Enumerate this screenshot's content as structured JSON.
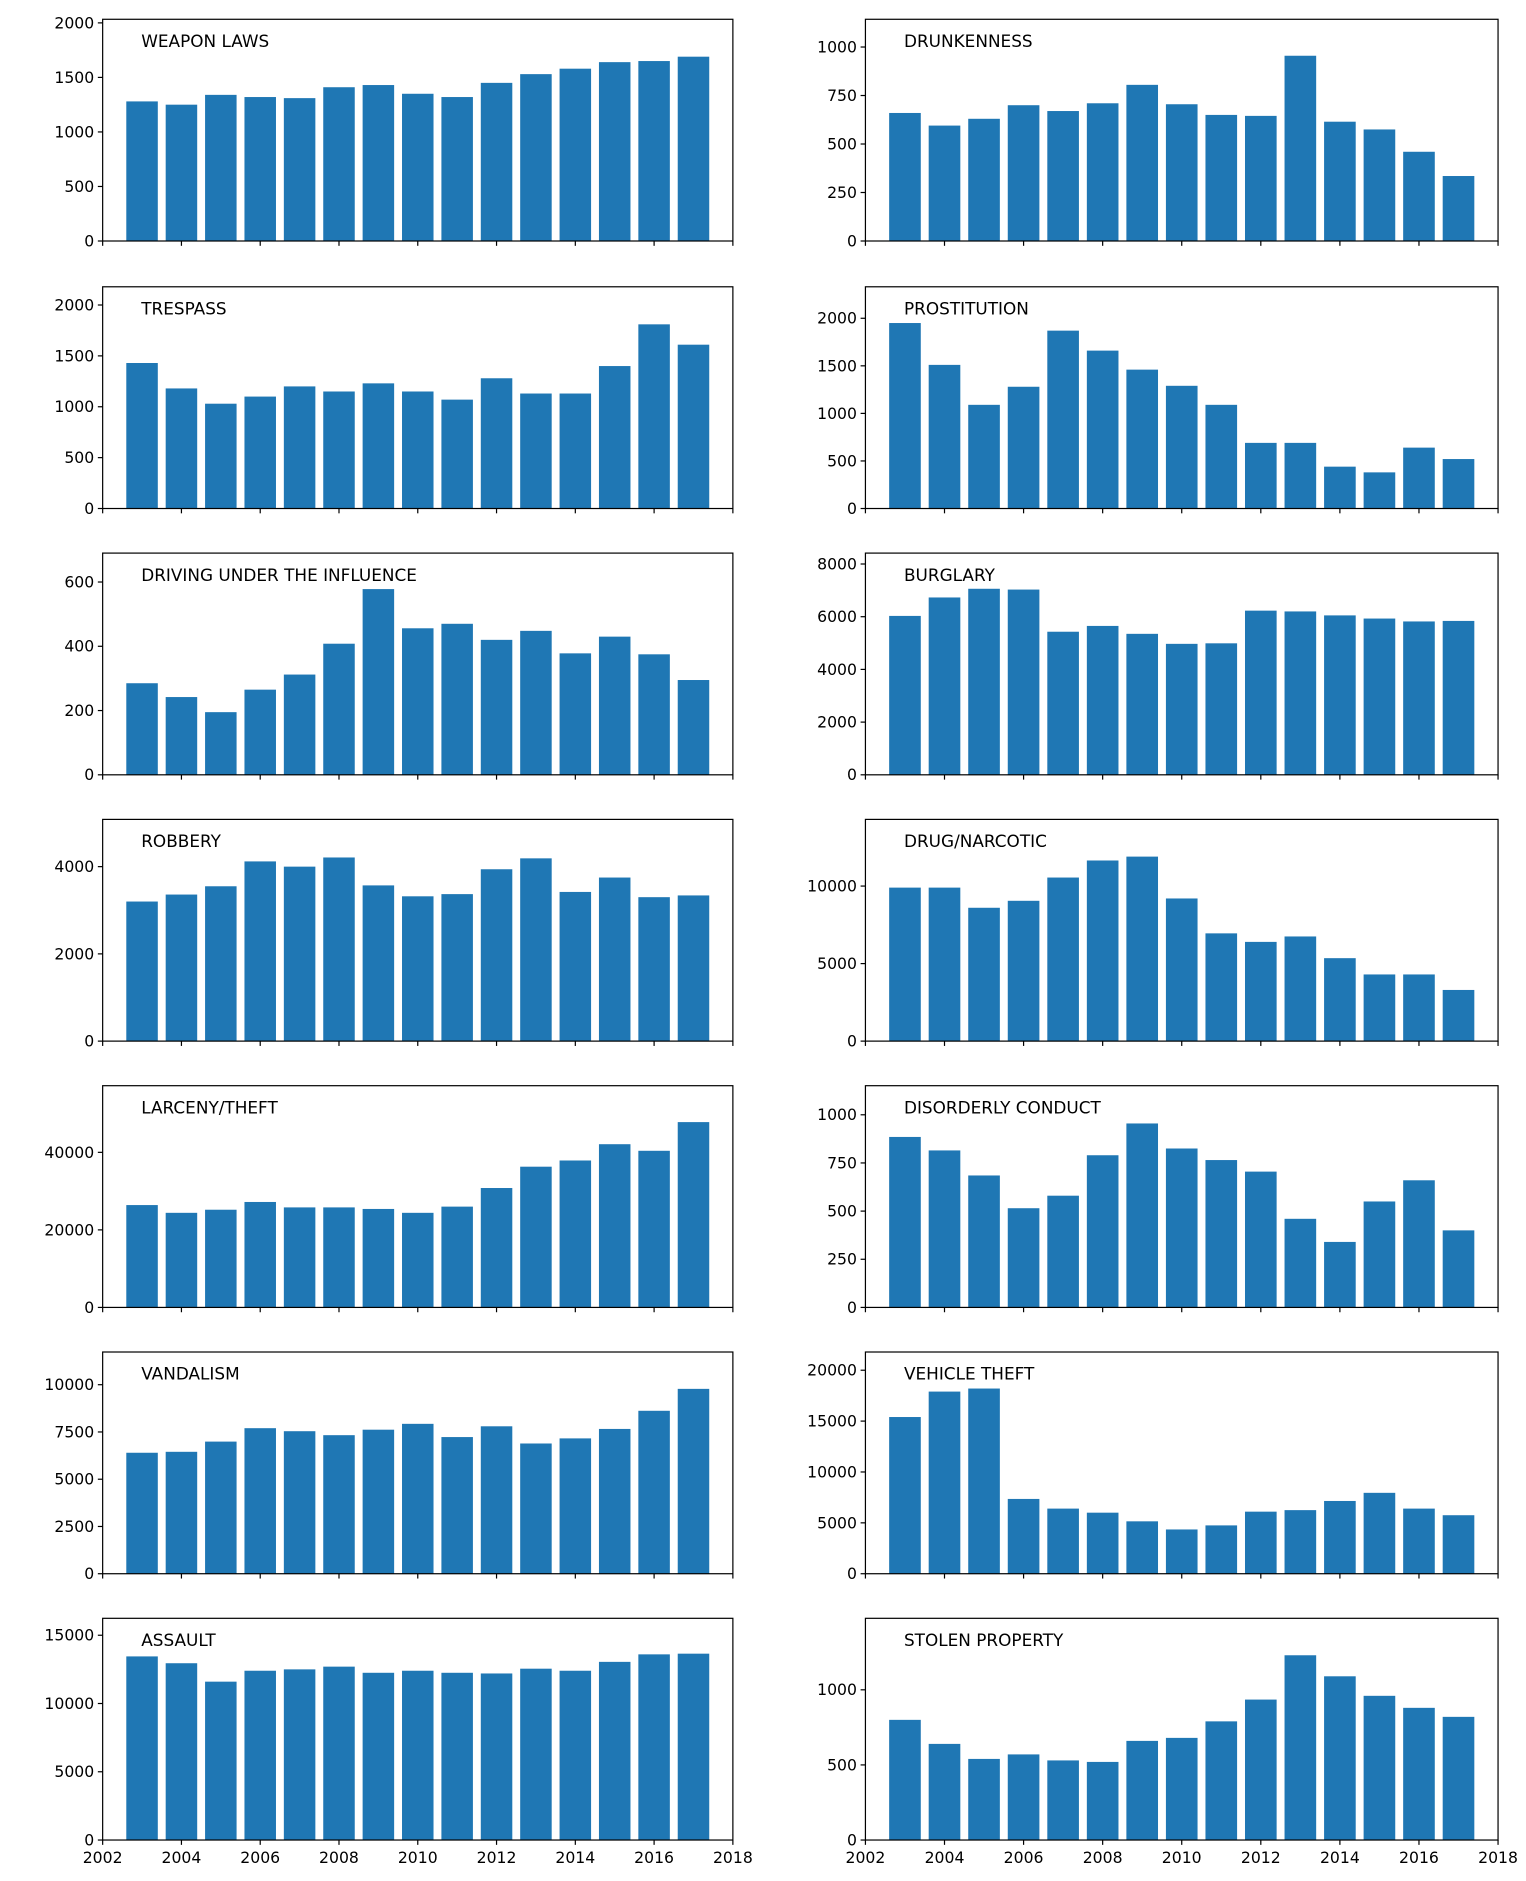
{
  "bar_color": "#1f77b4",
  "chart_data": [
    {
      "type": "bar",
      "title": "WEAPON LAWS",
      "ylim": [
        0,
        2033
      ],
      "yticks": [
        0,
        500,
        1000,
        1500,
        2000
      ],
      "x": [
        2003,
        2004,
        2005,
        2006,
        2007,
        2008,
        2009,
        2010,
        2011,
        2012,
        2013,
        2014,
        2015,
        2016,
        2017
      ],
      "values": [
        1280,
        1250,
        1340,
        1320,
        1310,
        1410,
        1430,
        1350,
        1320,
        1450,
        1530,
        1580,
        1640,
        1650,
        1690
      ]
    },
    {
      "type": "bar",
      "title": "DRUNKENNESS",
      "ylim": [
        0,
        1143
      ],
      "yticks": [
        0,
        250,
        500,
        750,
        1000
      ],
      "x": [
        2003,
        2004,
        2005,
        2006,
        2007,
        2008,
        2009,
        2010,
        2011,
        2012,
        2013,
        2014,
        2015,
        2016,
        2017
      ],
      "values": [
        660,
        595,
        630,
        700,
        670,
        710,
        805,
        705,
        650,
        645,
        955,
        615,
        575,
        460,
        335
      ]
    },
    {
      "type": "bar",
      "title": "TRESPASS",
      "ylim": [
        0,
        2179
      ],
      "yticks": [
        0,
        500,
        1000,
        1500,
        2000
      ],
      "x": [
        2003,
        2004,
        2005,
        2006,
        2007,
        2008,
        2009,
        2010,
        2011,
        2012,
        2013,
        2014,
        2015,
        2016,
        2017
      ],
      "values": [
        1430,
        1180,
        1030,
        1100,
        1200,
        1150,
        1230,
        1150,
        1070,
        1280,
        1130,
        1130,
        1400,
        1810,
        1610
      ]
    },
    {
      "type": "bar",
      "title": "PROSTITUTION",
      "ylim": [
        0,
        2331
      ],
      "yticks": [
        0,
        500,
        1000,
        1500,
        2000
      ],
      "x": [
        2003,
        2004,
        2005,
        2006,
        2007,
        2008,
        2009,
        2010,
        2011,
        2012,
        2013,
        2014,
        2015,
        2016,
        2017
      ],
      "values": [
        1950,
        1510,
        1090,
        1280,
        1870,
        1660,
        1460,
        1290,
        1090,
        690,
        690,
        440,
        380,
        640,
        520
      ]
    },
    {
      "type": "bar",
      "title": "DRIVING UNDER THE INFLUENCE",
      "ylim": [
        0,
        690
      ],
      "yticks": [
        0,
        200,
        400,
        600
      ],
      "x": [
        2003,
        2004,
        2005,
        2006,
        2007,
        2008,
        2009,
        2010,
        2011,
        2012,
        2013,
        2014,
        2015,
        2016,
        2017
      ],
      "values": [
        285,
        242,
        195,
        265,
        312,
        408,
        578,
        456,
        470,
        420,
        448,
        378,
        430,
        375,
        295
      ]
    },
    {
      "type": "bar",
      "title": "BURGLARY",
      "ylim": [
        0,
        8414
      ],
      "yticks": [
        0,
        2000,
        4000,
        6000,
        8000
      ],
      "x": [
        2003,
        2004,
        2005,
        2006,
        2007,
        2008,
        2009,
        2010,
        2011,
        2012,
        2013,
        2014,
        2015,
        2016,
        2017
      ],
      "values": [
        6030,
        6730,
        7060,
        7030,
        5430,
        5650,
        5350,
        4970,
        4990,
        6230,
        6200,
        6050,
        5930,
        5820,
        5840
      ]
    },
    {
      "type": "bar",
      "title": "ROBBERY",
      "ylim": [
        0,
        5083
      ],
      "yticks": [
        0,
        2000,
        4000
      ],
      "x": [
        2003,
        2004,
        2005,
        2006,
        2007,
        2008,
        2009,
        2010,
        2011,
        2012,
        2013,
        2014,
        2015,
        2016,
        2017
      ],
      "values": [
        3200,
        3360,
        3550,
        4120,
        4000,
        4210,
        3570,
        3320,
        3370,
        3940,
        4190,
        3420,
        3750,
        3300,
        3340
      ]
    },
    {
      "type": "bar",
      "title": "DRUG/NARCOTIC",
      "ylim": [
        0,
        14300
      ],
      "yticks": [
        0,
        5000,
        10000
      ],
      "x": [
        2003,
        2004,
        2005,
        2006,
        2007,
        2008,
        2009,
        2010,
        2011,
        2012,
        2013,
        2014,
        2015,
        2016,
        2017
      ],
      "values": [
        9900,
        9900,
        8600,
        9050,
        10550,
        11650,
        11900,
        9200,
        6950,
        6400,
        6750,
        5350,
        4300,
        4300,
        3300
      ]
    },
    {
      "type": "bar",
      "title": "LARCENY/THEFT",
      "ylim": [
        0,
        57190
      ],
      "yticks": [
        0,
        20000,
        40000
      ],
      "x": [
        2003,
        2004,
        2005,
        2006,
        2007,
        2008,
        2009,
        2010,
        2011,
        2012,
        2013,
        2014,
        2015,
        2016,
        2017
      ],
      "values": [
        26400,
        24400,
        25200,
        27200,
        25800,
        25800,
        25400,
        24400,
        26000,
        30800,
        36300,
        37900,
        42100,
        40400,
        47800
      ]
    },
    {
      "type": "bar",
      "title": "DISORDERLY CONDUCT",
      "ylim": [
        0,
        1151
      ],
      "yticks": [
        0,
        250,
        500,
        750,
        1000
      ],
      "x": [
        2003,
        2004,
        2005,
        2006,
        2007,
        2008,
        2009,
        2010,
        2011,
        2012,
        2013,
        2014,
        2015,
        2016,
        2017
      ],
      "values": [
        885,
        815,
        685,
        515,
        580,
        790,
        955,
        825,
        765,
        705,
        460,
        340,
        550,
        660,
        400
      ]
    },
    {
      "type": "bar",
      "title": "VANDALISM",
      "ylim": [
        0,
        11730
      ],
      "yticks": [
        0,
        2500,
        5000,
        7500,
        10000
      ],
      "x": [
        2003,
        2004,
        2005,
        2006,
        2007,
        2008,
        2009,
        2010,
        2011,
        2012,
        2013,
        2014,
        2015,
        2016,
        2017
      ],
      "values": [
        6400,
        6450,
        6990,
        7700,
        7540,
        7330,
        7620,
        7930,
        7230,
        7800,
        6890,
        7160,
        7660,
        8620,
        9780
      ]
    },
    {
      "type": "bar",
      "title": "VEHICLE THEFT",
      "ylim": [
        0,
        21790
      ],
      "yticks": [
        0,
        5000,
        10000,
        15000,
        20000
      ],
      "x": [
        2003,
        2004,
        2005,
        2006,
        2007,
        2008,
        2009,
        2010,
        2011,
        2012,
        2013,
        2014,
        2015,
        2016,
        2017
      ],
      "values": [
        15400,
        17900,
        18200,
        7350,
        6400,
        6000,
        5150,
        4350,
        4750,
        6100,
        6250,
        7150,
        7950,
        6400,
        5750
      ]
    },
    {
      "type": "bar",
      "title": "ASSAULT",
      "ylim": [
        0,
        16240
      ],
      "yticks": [
        0,
        5000,
        10000,
        15000
      ],
      "x": [
        2003,
        2004,
        2005,
        2006,
        2007,
        2008,
        2009,
        2010,
        2011,
        2012,
        2013,
        2014,
        2015,
        2016,
        2017
      ],
      "values": [
        13450,
        12950,
        11600,
        12400,
        12500,
        12700,
        12250,
        12400,
        12250,
        12200,
        12550,
        12400,
        13050,
        13600,
        13650
      ]
    },
    {
      "type": "bar",
      "title": "STOLEN PROPERTY",
      "ylim": [
        0,
        1476
      ],
      "yticks": [
        0,
        500,
        1000
      ],
      "x": [
        2003,
        2004,
        2005,
        2006,
        2007,
        2008,
        2009,
        2010,
        2011,
        2012,
        2013,
        2014,
        2015,
        2016,
        2017
      ],
      "values": [
        800,
        640,
        540,
        570,
        530,
        520,
        660,
        680,
        790,
        935,
        1230,
        1090,
        960,
        880,
        820
      ]
    }
  ],
  "xaxis": {
    "xlim": [
      2002,
      2018
    ],
    "xticks": [
      2002,
      2004,
      2006,
      2008,
      2010,
      2012,
      2014,
      2016,
      2018
    ]
  }
}
